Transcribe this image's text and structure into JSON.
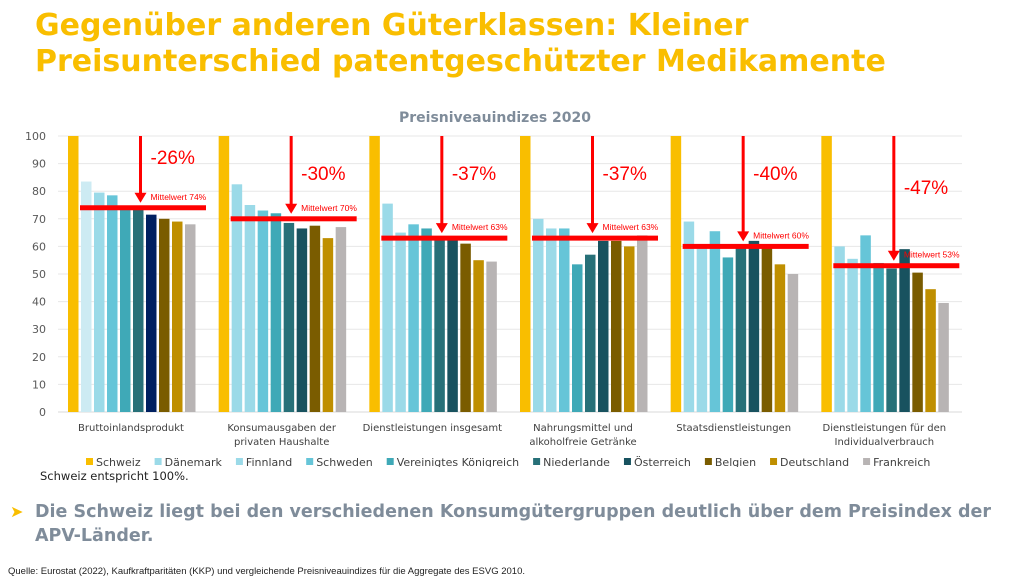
{
  "slide": {
    "title_line1": "Gegenüber anderen Güterklassen: Kleiner",
    "title_line2": "Preisunterschied patentgeschützter Medikamente",
    "note": "Schweiz entspricht 100%.",
    "bullet": "Die Schweiz liegt bei den verschiedenen Konsumgütergruppen deutlich über dem Preisindex der APV-Länder.",
    "bullet_icon": "arrow-right-icon",
    "source": "Quelle: Eurostat (2022), Kaufkraftparitäten (KKP) und vergleichende Preisniveauindizes für die Aggregate des ESVG 2010."
  },
  "chart_data": {
    "type": "bar",
    "title": "Preisniveauindizes 2020",
    "xlabel": "",
    "ylabel": "",
    "ylim": [
      0,
      100
    ],
    "yticks": [
      0,
      10,
      20,
      30,
      40,
      50,
      60,
      70,
      80,
      90,
      100
    ],
    "grid": true,
    "legend_position": "bottom",
    "categories": [
      [
        "Bruttoinlandsprodukt"
      ],
      [
        "Konsumausgaben der",
        "privaten Haushalte"
      ],
      [
        "Dienstleistungen insgesamt"
      ],
      [
        "Nahrungsmittel und",
        "alkoholfreie Getränke"
      ],
      [
        "Staatsdienstleistungen"
      ],
      [
        "Dienstleistungen für den",
        "Individualverbrauch"
      ]
    ],
    "series": [
      {
        "name": "Schweiz",
        "color": "#F9BE00",
        "values": [
          100,
          100,
          100,
          100,
          100,
          100
        ]
      },
      {
        "name": "Dänemark",
        "color": "#9BDAE8",
        "values": [
          83.5,
          82.5,
          75.5,
          70,
          69,
          60
        ]
      },
      {
        "name": "Finnland",
        "color": "#9BDAE8",
        "values": [
          79.5,
          75,
          65,
          66.5,
          60,
          55.5
        ]
      },
      {
        "name": "Schweden",
        "color": "#66C5D8",
        "values": [
          78.5,
          73,
          68,
          66.5,
          65.5,
          64
        ]
      },
      {
        "name": "Vereinigtes Königreich",
        "color": "#3FA9B7",
        "values": [
          73.5,
          72,
          66.5,
          53.5,
          56,
          54
        ]
      },
      {
        "name": "Niederlande",
        "color": "#277078",
        "values": [
          73.5,
          68.5,
          63,
          57,
          60,
          52
        ]
      },
      {
        "name": "Österreich",
        "color": "#18525F",
        "values": [
          71.5,
          66.5,
          63,
          62,
          62,
          59
        ]
      },
      {
        "name": "Belgien",
        "color": "#7A5C00",
        "values": [
          70,
          67.5,
          61,
          62,
          60,
          50.5
        ]
      },
      {
        "name": "Deutschland",
        "color": "#BF8F00",
        "values": [
          69,
          63,
          55,
          60,
          53.5,
          44.5
        ]
      },
      {
        "name": "Frankreich",
        "color": "#B8B4B4",
        "values": [
          68,
          67,
          54.5,
          64,
          50,
          39.5
        ]
      }
    ],
    "color_overrides": [
      {
        "series": "Dänemark",
        "category_index": 0,
        "color": "#CDEBF3"
      },
      {
        "series": "Österreich",
        "category_index": 0,
        "color": "#002060"
      }
    ],
    "annotations": [
      {
        "category_index": 0,
        "mean": 74,
        "mean_label": "Mittelwert 74%",
        "diff_label": "-26%"
      },
      {
        "category_index": 1,
        "mean": 70,
        "mean_label": "Mittelwert 70%",
        "diff_label": "-30%"
      },
      {
        "category_index": 2,
        "mean": 63,
        "mean_label": "Mittelwert 63%",
        "diff_label": "-37%"
      },
      {
        "category_index": 3,
        "mean": 63,
        "mean_label": "Mittelwert 63%",
        "diff_label": "-37%"
      },
      {
        "category_index": 4,
        "mean": 60,
        "mean_label": "Mittelwert 60%",
        "diff_label": "-40%"
      },
      {
        "category_index": 5,
        "mean": 53,
        "mean_label": "Mittelwert 53%",
        "diff_label": "-47%"
      }
    ],
    "annotation_color": "#FF0000"
  }
}
